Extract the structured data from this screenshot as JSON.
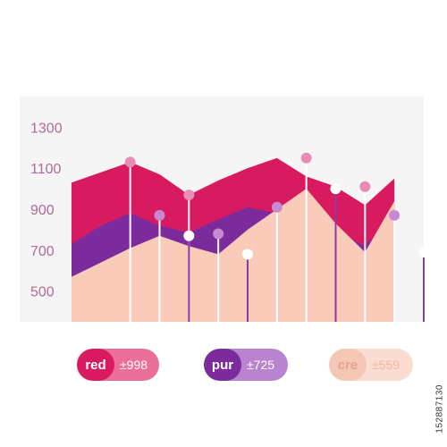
{
  "chart_data": {
    "type": "area",
    "x": [
      1,
      2,
      3,
      4,
      5,
      6,
      7,
      8,
      9,
      10,
      11,
      12,
      13
    ],
    "xlim": [
      1,
      13
    ],
    "ylim": [
      350,
      1450
    ],
    "y_ticks": [
      "1300",
      "1100",
      "900",
      "700",
      "500"
    ],
    "y_tick_values": [
      1300,
      1100,
      900,
      700,
      500
    ],
    "grid": false,
    "legend_position": "bottom",
    "series": [
      {
        "key": "red",
        "color": "#D81B60",
        "values": [
          1030,
          1080,
          1130,
          1070,
          970,
          1040,
          1100,
          1150,
          1060,
          1010,
          920,
          1050,
          null
        ],
        "markers": [
          [
            3,
            1130
          ],
          [
            5,
            970
          ],
          [
            9,
            1150
          ],
          [
            11,
            1010
          ]
        ],
        "marker_color": "#E78DB4"
      },
      {
        "key": "pur",
        "color": "#7B2B9C",
        "values": [
          730,
          820,
          880,
          820,
          785,
          850,
          910,
          880,
          810,
          790,
          720,
          870,
          null
        ],
        "markers": [
          [
            4,
            870
          ],
          [
            6,
            780
          ],
          [
            8,
            910
          ],
          [
            12,
            870
          ]
        ],
        "marker_color": "#C788D4"
      },
      {
        "key": "cre",
        "color": "#F9CBB8",
        "values": [
          570,
          640,
          710,
          770,
          720,
          680,
          800,
          900,
          1000,
          830,
          690,
          940,
          null
        ],
        "markers": [
          [
            5,
            770
          ],
          [
            7,
            680
          ],
          [
            10,
            1000
          ],
          [
            13,
            690
          ]
        ],
        "marker_color": "#FFFFFF"
      }
    ]
  },
  "legend": [
    {
      "key": "red",
      "value": "±998",
      "key_color": "#D81B60",
      "pill_color": "#EC6E9A"
    },
    {
      "key": "pur",
      "value": "±725",
      "key_color": "#7B2B9C",
      "pill_color": "#B983CF"
    },
    {
      "key": "cre",
      "value": "±559",
      "key_color": "#F4C6B4",
      "pill_color": "#FBDCD0"
    }
  ],
  "side_caption": "152887130",
  "colors": {
    "background": "#FFFFFF",
    "plot_background": "#F5F5F5",
    "tick_label": "#B06A95"
  }
}
